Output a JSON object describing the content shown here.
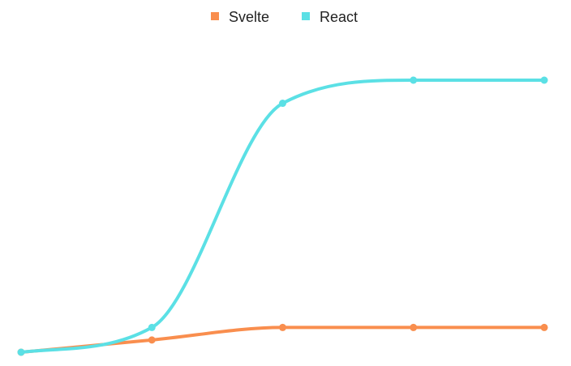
{
  "chart_data": {
    "type": "line",
    "smooth": true,
    "title": "",
    "xlabel": "",
    "ylabel": "",
    "x": [
      1,
      2,
      3,
      4,
      5
    ],
    "ylim": [
      0,
      100
    ],
    "grid": false,
    "legend_position": "top-center",
    "series": [
      {
        "name": "Svelte",
        "color": "#F98E4E",
        "values": [
          0,
          4.5,
          9.1,
          9.1,
          9.1
        ]
      },
      {
        "name": "React",
        "color": "#5BE0E5",
        "values": [
          0,
          9.1,
          91.5,
          100,
          100
        ]
      }
    ]
  }
}
